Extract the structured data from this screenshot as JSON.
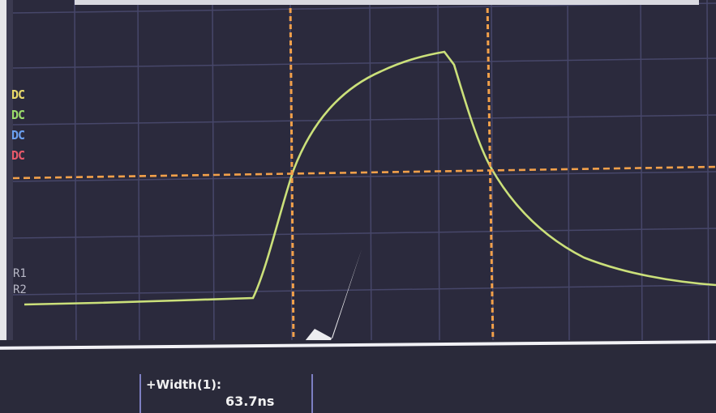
{
  "channels": [
    {
      "label": "DC",
      "color": "#e8d96a"
    },
    {
      "label": "DC",
      "color": "#9bdc6a"
    },
    {
      "label": "DC",
      "color": "#6aa0f0"
    },
    {
      "label": "DC",
      "color": "#e85a6a"
    }
  ],
  "refs": [
    "R1",
    "R2"
  ],
  "measurement": {
    "label": "+Width(1):",
    "value": "63.7ns"
  },
  "colors": {
    "trace": "#cbe07a",
    "cursor": "#f2a04a",
    "grid": "#47476a",
    "screen": "#2b2a3d"
  }
}
